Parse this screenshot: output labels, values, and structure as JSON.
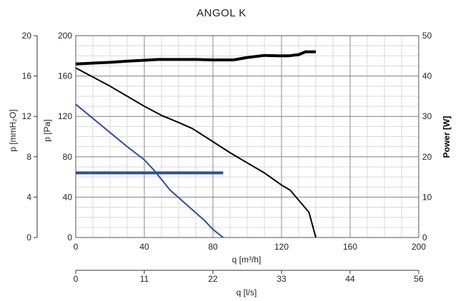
{
  "chart_data": {
    "type": "line",
    "title": "ANGOL K",
    "xlabel": "q [m³/h]",
    "xlabel2": "q [l/s]",
    "ylabel_pa": "p [Pa]",
    "ylabel_mmh2o": "p [mmH₂O]",
    "ylabel_power": "Power [W]",
    "xlim": [
      0,
      200
    ],
    "x_ticks": [
      "0",
      "40",
      "80",
      "120",
      "160",
      "200"
    ],
    "x2_ticks": [
      "0",
      "11",
      "22",
      "33",
      "44",
      "56"
    ],
    "y_pa_lim": [
      0,
      200
    ],
    "y_pa_ticks": [
      "0",
      "40",
      "80",
      "120",
      "160",
      "200"
    ],
    "y_mmh2o_lim": [
      0,
      20
    ],
    "y_mmh2o_ticks": [
      "0",
      "4",
      "8",
      "12",
      "16",
      "20"
    ],
    "y_power_lim": [
      0,
      50
    ],
    "y_power_ticks": [
      "0",
      "10",
      "20",
      "30",
      "40",
      "50"
    ],
    "grid": true,
    "series": [
      {
        "axis": "power",
        "color": "#000000",
        "width": 4,
        "points": [
          [
            0,
            43
          ],
          [
            10,
            43.2
          ],
          [
            20,
            43.4
          ],
          [
            30,
            43.7
          ],
          [
            40,
            43.9
          ],
          [
            48,
            44.1
          ],
          [
            60,
            44.1
          ],
          [
            70,
            44.1
          ],
          [
            80,
            44.0
          ],
          [
            92,
            44.0
          ],
          [
            100,
            44.6
          ],
          [
            110,
            45.1
          ],
          [
            118,
            45.0
          ],
          [
            124,
            45.0
          ],
          [
            130,
            45.3
          ],
          [
            134,
            46.0
          ],
          [
            140,
            46.0
          ]
        ]
      },
      {
        "axis": "pa",
        "color": "#000000",
        "width": 2,
        "points": [
          [
            0,
            168
          ],
          [
            10,
            159
          ],
          [
            20,
            150
          ],
          [
            30,
            140
          ],
          [
            40,
            130
          ],
          [
            50,
            121
          ],
          [
            60,
            114
          ],
          [
            68,
            108
          ],
          [
            80,
            95
          ],
          [
            90,
            84
          ],
          [
            100,
            74
          ],
          [
            110,
            64
          ],
          [
            120,
            52
          ],
          [
            125,
            47
          ],
          [
            130,
            37
          ],
          [
            136,
            25
          ],
          [
            140,
            0
          ]
        ]
      },
      {
        "axis": "pa",
        "color": "#2e4d9a",
        "width": 2,
        "points": [
          [
            0,
            132
          ],
          [
            10,
            118
          ],
          [
            20,
            104
          ],
          [
            30,
            90
          ],
          [
            40,
            77
          ],
          [
            46,
            66
          ],
          [
            55,
            47
          ],
          [
            65,
            32
          ],
          [
            75,
            17
          ],
          [
            80,
            8
          ],
          [
            86,
            0
          ]
        ]
      },
      {
        "axis": "mmh2o",
        "color": "#2e4d9a",
        "width": 4,
        "points": [
          [
            0,
            6.4
          ],
          [
            86,
            6.4
          ]
        ]
      }
    ]
  }
}
